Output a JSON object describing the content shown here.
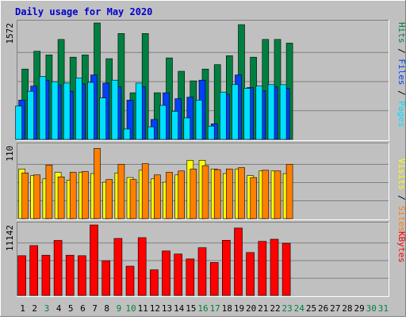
{
  "title": "Daily usage for May 2020",
  "colors": {
    "background": "#c0c0c0",
    "border_light": "#ffffff",
    "border_dark": "#808080",
    "title": "#0000cc",
    "hits": "#008040",
    "files": "#0040ff",
    "pages": "#00e0ff",
    "visits": "#ffff00",
    "sites": "#ff8000",
    "kbytes": "#ff0000",
    "weekday_label": "#000000",
    "weekend_label": "#008040"
  },
  "chart_data": [
    {
      "type": "bar",
      "panel": "hits-files-pages",
      "max_label": "1572",
      "ylim": [
        0,
        1572
      ],
      "legend": [
        {
          "name": "Pages",
          "color": "#00e0ff"
        },
        {
          "name": "Files",
          "color": "#0040ff"
        },
        {
          "name": "Hits",
          "color": "#008040"
        }
      ],
      "categories": [
        "1",
        "2",
        "3",
        "4",
        "5",
        "6",
        "7",
        "8",
        "9",
        "10",
        "11",
        "12",
        "13",
        "14",
        "15",
        "16",
        "17",
        "18",
        "19",
        "20",
        "21",
        "22",
        "23",
        "24",
        "25",
        "26",
        "27",
        "28",
        "29",
        "30",
        "31"
      ],
      "series": [
        {
          "name": "Hits",
          "values": [
            950,
            1190,
            1140,
            1350,
            1110,
            1140,
            1572,
            1090,
            1430,
            630,
            1430,
            630,
            1100,
            920,
            790,
            950,
            1010,
            1130,
            1550,
            1110,
            1350,
            1350,
            1300,
            0,
            0,
            0,
            0,
            0,
            0,
            0,
            0
          ]
        },
        {
          "name": "Files",
          "values": [
            530,
            720,
            800,
            740,
            650,
            750,
            870,
            760,
            710,
            530,
            710,
            270,
            630,
            550,
            570,
            800,
            210,
            610,
            870,
            700,
            660,
            710,
            690,
            0,
            0,
            0,
            0,
            0,
            0,
            0,
            0
          ]
        },
        {
          "name": "Pages",
          "values": [
            450,
            650,
            850,
            780,
            760,
            830,
            770,
            560,
            800,
            140,
            760,
            170,
            460,
            380,
            290,
            530,
            180,
            640,
            740,
            690,
            720,
            740,
            740,
            0,
            0,
            0,
            0,
            0,
            0,
            0,
            0
          ]
        }
      ]
    },
    {
      "type": "bar",
      "panel": "visits-sites",
      "max_label": "110",
      "ylim": [
        0,
        110
      ],
      "legend": [
        {
          "name": "Sites",
          "color": "#ff8000"
        },
        {
          "name": "Visits",
          "color": "#ffff00"
        }
      ],
      "categories": [
        "1",
        "2",
        "3",
        "4",
        "5",
        "6",
        "7",
        "8",
        "9",
        "10",
        "11",
        "12",
        "13",
        "14",
        "15",
        "16",
        "17",
        "18",
        "19",
        "20",
        "21",
        "22",
        "23",
        "24",
        "25",
        "26",
        "27",
        "28",
        "29",
        "30",
        "31"
      ],
      "series": [
        {
          "name": "Visits",
          "values": [
            75,
            65,
            60,
            70,
            58,
            70,
            68,
            55,
            69,
            62,
            73,
            60,
            55,
            66,
            88,
            88,
            75,
            68,
            75,
            65,
            72,
            72,
            68,
            0,
            0,
            0,
            0,
            0,
            0,
            0,
            0
          ]
        },
        {
          "name": "Sites",
          "values": [
            69,
            66,
            81,
            63,
            70,
            71,
            106,
            59,
            82,
            59,
            83,
            66,
            70,
            72,
            75,
            80,
            74,
            75,
            77,
            62,
            73,
            72,
            82,
            0,
            0,
            0,
            0,
            0,
            0,
            0,
            0
          ]
        }
      ]
    },
    {
      "type": "bar",
      "panel": "kbytes",
      "max_label": "11142",
      "ylim": [
        0,
        11142
      ],
      "legend": [
        {
          "name": "KBytes",
          "color": "#ff0000"
        }
      ],
      "categories": [
        "1",
        "2",
        "3",
        "4",
        "5",
        "6",
        "7",
        "8",
        "9",
        "10",
        "11",
        "12",
        "13",
        "14",
        "15",
        "16",
        "17",
        "18",
        "19",
        "20",
        "21",
        "22",
        "23",
        "24",
        "25",
        "26",
        "27",
        "28",
        "29",
        "30",
        "31"
      ],
      "series": [
        {
          "name": "KBytes",
          "values": [
            6280,
            7890,
            6360,
            8700,
            6360,
            6290,
            11142,
            5490,
            9020,
            4630,
            9140,
            4060,
            7040,
            6550,
            5770,
            7550,
            5220,
            8730,
            10650,
            6780,
            8550,
            8890,
            8250,
            0,
            0,
            0,
            0,
            0,
            0,
            0,
            0
          ]
        }
      ]
    }
  ],
  "x_labels": [
    {
      "label": "1",
      "weekend": false
    },
    {
      "label": "2",
      "weekend": false
    },
    {
      "label": "3",
      "weekend": true
    },
    {
      "label": "4",
      "weekend": false
    },
    {
      "label": "5",
      "weekend": false
    },
    {
      "label": "6",
      "weekend": false
    },
    {
      "label": "7",
      "weekend": false
    },
    {
      "label": "8",
      "weekend": false
    },
    {
      "label": "9",
      "weekend": true
    },
    {
      "label": "10",
      "weekend": true
    },
    {
      "label": "11",
      "weekend": false
    },
    {
      "label": "12",
      "weekend": false
    },
    {
      "label": "13",
      "weekend": false
    },
    {
      "label": "14",
      "weekend": false
    },
    {
      "label": "15",
      "weekend": false
    },
    {
      "label": "16",
      "weekend": true
    },
    {
      "label": "17",
      "weekend": true
    },
    {
      "label": "18",
      "weekend": false
    },
    {
      "label": "19",
      "weekend": false
    },
    {
      "label": "20",
      "weekend": false
    },
    {
      "label": "21",
      "weekend": false
    },
    {
      "label": "22",
      "weekend": false
    },
    {
      "label": "23",
      "weekend": true
    },
    {
      "label": "24",
      "weekend": true
    },
    {
      "label": "25",
      "weekend": false
    },
    {
      "label": "26",
      "weekend": false
    },
    {
      "label": "27",
      "weekend": false
    },
    {
      "label": "28",
      "weekend": false
    },
    {
      "label": "29",
      "weekend": false
    },
    {
      "label": "30",
      "weekend": true
    },
    {
      "label": "31",
      "weekend": true
    }
  ]
}
